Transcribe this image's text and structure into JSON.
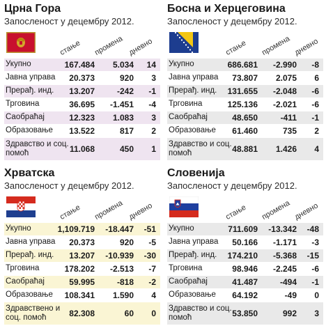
{
  "columns": [
    "стање",
    "промена",
    "дневно"
  ],
  "panels": [
    {
      "country": "Црна Гора",
      "subtitle": "Запосленост у децембру 2012.",
      "flag": "montenegro",
      "rows": [
        {
          "label": "Укупно",
          "stanje": "167.484",
          "promena": "5.034",
          "dnevno": "14"
        },
        {
          "label": "Јавна управа",
          "stanje": "20.373",
          "promena": "920",
          "dnevno": "3"
        },
        {
          "label": "Прерађ. инд.",
          "stanje": "13.207",
          "promena": "-242",
          "dnevno": "-1"
        },
        {
          "label": "Трговина",
          "stanje": "36.695",
          "promena": "-1.451",
          "dnevno": "-4"
        },
        {
          "label": "Саобраћај",
          "stanje": "12.323",
          "promena": "1.083",
          "dnevno": "3"
        },
        {
          "label": "Образовање",
          "stanje": "13.522",
          "promena": "817",
          "dnevno": "2"
        },
        {
          "label": "Здравство и соц. помоћ",
          "stanje": "11.068",
          "promena": "450",
          "dnevno": "1"
        }
      ]
    },
    {
      "country": "Босна и Херцеговина",
      "subtitle": "Запосленост у децембру 2012.",
      "flag": "bosnia",
      "rows": [
        {
          "label": "Укупно",
          "stanje": "686.681",
          "promena": "-2.990",
          "dnevno": "-8"
        },
        {
          "label": "Јавна управа",
          "stanje": "73.807",
          "promena": "2.075",
          "dnevno": "6"
        },
        {
          "label": "Прерађ. инд.",
          "stanje": "131.655",
          "promena": "-2.048",
          "dnevno": "-6"
        },
        {
          "label": "Трговина",
          "stanje": "125.136",
          "promena": "-2.021",
          "dnevno": "-6"
        },
        {
          "label": "Саобраћај",
          "stanje": "48.650",
          "promena": "-411",
          "dnevno": "-1"
        },
        {
          "label": "Образовање",
          "stanje": "61.460",
          "promena": "735",
          "dnevno": "2"
        },
        {
          "label": "Здравство и соц. помоћ",
          "stanje": "48.881",
          "promena": "1.426",
          "dnevno": "4"
        }
      ]
    },
    {
      "country": "Хрватска",
      "subtitle": "Запосленост у децембру 2012.",
      "flag": "croatia",
      "rows": [
        {
          "label": "Укупно",
          "stanje": "1,109.719",
          "promena": "-18.447",
          "dnevno": "-51"
        },
        {
          "label": "Јавна управа",
          "stanje": "20.373",
          "promena": "920",
          "dnevno": "-5"
        },
        {
          "label": "Прерађ. инд.",
          "stanje": "13.207",
          "promena": "-10.939",
          "dnevno": "-30"
        },
        {
          "label": "Трговина",
          "stanje": "178.202",
          "promena": "-2.513",
          "dnevno": "-7"
        },
        {
          "label": "Саобраћај",
          "stanje": "59.995",
          "promena": "-818",
          "dnevno": "-2"
        },
        {
          "label": "Образовање",
          "stanje": "108.341",
          "promena": "1.590",
          "dnevno": "4"
        },
        {
          "label": "Здравствено и соц. помоћ",
          "stanje": "82.308",
          "promena": "60",
          "dnevno": "0"
        }
      ]
    },
    {
      "country": "Словенија",
      "subtitle": "Запосленост у децембру 2012.",
      "flag": "slovenia",
      "rows": [
        {
          "label": "Укупно",
          "stanje": "711.609",
          "promena": "-13.342",
          "dnevno": "-48"
        },
        {
          "label": "Јавна управа",
          "stanje": "50.166",
          "promena": "-1.171",
          "dnevno": "-3"
        },
        {
          "label": "Прерађ. инд.",
          "stanje": "174.210",
          "promena": "-5.368",
          "dnevno": "-15"
        },
        {
          "label": "Трговина",
          "stanje": "98.946",
          "promena": "-2.245",
          "dnevno": "-6"
        },
        {
          "label": "Саобраћај",
          "stanje": "41.487",
          "promena": "-494",
          "dnevno": "-1"
        },
        {
          "label": "Образовање",
          "stanje": "64.192",
          "promena": "-49",
          "dnevno": "0"
        },
        {
          "label": "Здравство и соц. помоћ",
          "stanje": "53.850",
          "promena": "992",
          "dnevno": "3"
        }
      ]
    }
  ],
  "colors": {
    "montenegro_band": "#efe4f0",
    "bosnia_band": "#e9e9e9",
    "croatia_band": "#faf5d4",
    "slovenia_band": "#e9e9e9"
  },
  "chart_data": [
    {
      "type": "table",
      "title": "Црна Гора",
      "subtitle": "Запосленост у децембру 2012.",
      "columns": [
        "стање",
        "промена",
        "дневно"
      ],
      "categories": [
        "Укупно",
        "Јавна управа",
        "Прерађ. инд.",
        "Трговина",
        "Саобраћај",
        "Образовање",
        "Здравство и соц. помоћ"
      ],
      "series": [
        {
          "name": "стање",
          "values": [
            167484,
            20373,
            13207,
            36695,
            12323,
            13522,
            11068
          ]
        },
        {
          "name": "промена",
          "values": [
            5034,
            920,
            -242,
            -1451,
            1083,
            817,
            450
          ]
        },
        {
          "name": "дневно",
          "values": [
            14,
            3,
            -1,
            -4,
            3,
            2,
            1
          ]
        }
      ]
    },
    {
      "type": "table",
      "title": "Босна и Херцеговина",
      "subtitle": "Запосленост у децембру 2012.",
      "columns": [
        "стање",
        "промена",
        "дневно"
      ],
      "categories": [
        "Укупно",
        "Јавна управа",
        "Прерађ. инд.",
        "Трговина",
        "Саобраћај",
        "Образовање",
        "Здравство и соц. помоћ"
      ],
      "series": [
        {
          "name": "стање",
          "values": [
            686681,
            73807,
            131655,
            125136,
            48650,
            61460,
            48881
          ]
        },
        {
          "name": "промена",
          "values": [
            -2990,
            2075,
            -2048,
            -2021,
            -411,
            735,
            1426
          ]
        },
        {
          "name": "дневно",
          "values": [
            -8,
            6,
            -6,
            -6,
            -1,
            2,
            4
          ]
        }
      ]
    },
    {
      "type": "table",
      "title": "Хрватска",
      "subtitle": "Запосленост у децембру 2012.",
      "columns": [
        "стање",
        "промена",
        "дневно"
      ],
      "categories": [
        "Укупно",
        "Јавна управа",
        "Прерађ. инд.",
        "Трговина",
        "Саобраћај",
        "Образовање",
        "Здравствено и соц. помоћ"
      ],
      "series": [
        {
          "name": "стање",
          "values": [
            1109719,
            20373,
            13207,
            178202,
            59995,
            108341,
            82308
          ]
        },
        {
          "name": "промена",
          "values": [
            -18447,
            920,
            -10939,
            -2513,
            -818,
            1590,
            60
          ]
        },
        {
          "name": "дневно",
          "values": [
            -51,
            -5,
            -30,
            -7,
            -2,
            4,
            0
          ]
        }
      ]
    },
    {
      "type": "table",
      "title": "Словенија",
      "subtitle": "Запосленост у децембру 2012.",
      "columns": [
        "стање",
        "промена",
        "дневно"
      ],
      "categories": [
        "Укупно",
        "Јавна управа",
        "Прерађ. инд.",
        "Трговина",
        "Саобраћај",
        "Образовање",
        "Здравство и соц. помоћ"
      ],
      "series": [
        {
          "name": "стање",
          "values": [
            711609,
            50166,
            174210,
            98946,
            41487,
            64192,
            53850
          ]
        },
        {
          "name": "промена",
          "values": [
            -13342,
            -1171,
            -5368,
            -2245,
            -494,
            -49,
            992
          ]
        },
        {
          "name": "дневно",
          "values": [
            -48,
            -3,
            -15,
            -6,
            -1,
            0,
            3
          ]
        }
      ]
    }
  ]
}
